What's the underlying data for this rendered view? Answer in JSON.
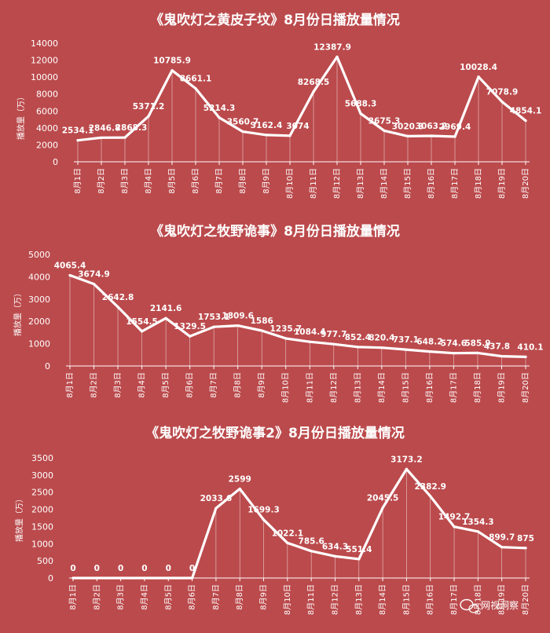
{
  "chart_data": [
    {
      "type": "line",
      "title": "《鬼吹灯之黄皮子坟》8月份日播放量情况",
      "ylabel": "播放量（万）",
      "categories": [
        "8月1日",
        "8月2日",
        "8月3日",
        "8月4日",
        "8月5日",
        "8月6日",
        "8月7日",
        "8月8日",
        "8月9日",
        "8月10日",
        "8月11日",
        "8月12日",
        "8月13日",
        "8月14日",
        "8月15日",
        "8月16日",
        "8月17日",
        "8月18日",
        "8月19日",
        "8月20日"
      ],
      "series": [
        {
          "values": [
            2534.1,
            2846.8,
            2868.3,
            5371.2,
            10785.9,
            8661.1,
            5214.3,
            3560.7,
            3162.4,
            3074,
            8268.5,
            12387.9,
            5688.3,
            3675.3,
            3020.3,
            3063.2,
            2969.4,
            10028.4,
            7078.9,
            4854.1
          ]
        }
      ],
      "data_labels": [
        "2534.1",
        "2846.8",
        "2868.3",
        "5371.2",
        "10785.9",
        "8661.1",
        "5214.3",
        "3560.7",
        "3162.4",
        "3074",
        "8268.5",
        "12387.9",
        "5688.3",
        "3675.3",
        "3020.3",
        "3063.2",
        "2969.4",
        "10028.4",
        "7078.9",
        "4854.1"
      ],
      "yticks": [
        "0",
        "2000",
        "4000",
        "6000",
        "8000",
        "10000",
        "12000",
        "14000"
      ],
      "ylim": [
        0,
        14000
      ],
      "grid": false
    },
    {
      "type": "line",
      "title": "《鬼吹灯之牧野诡事》8月份日播放量情况",
      "ylabel": "播放量（万）",
      "categories": [
        "8月1日",
        "8月2日",
        "8月3日",
        "8月4日",
        "8月5日",
        "8月6日",
        "8月7日",
        "8月8日",
        "8月9日",
        "8月10日",
        "8月11日",
        "8月12日",
        "8月13日",
        "8月14日",
        "8月15日",
        "8月16日",
        "8月17日",
        "8月18日",
        "8月19日",
        "8月20日"
      ],
      "series": [
        {
          "values": [
            4065.4,
            3674.9,
            2642.8,
            1554.5,
            2141.6,
            1329.5,
            1753.1,
            1809.6,
            1586,
            1235.7,
            1084.4,
            977.7,
            852.4,
            820.4,
            737.1,
            648.2,
            574.6,
            585.9,
            437.8,
            410.1
          ]
        }
      ],
      "data_labels": [
        "4065.4",
        "3674.9",
        "2642.8",
        "1554.5",
        "2141.6",
        "1329.5",
        "1753.1",
        "1809.6",
        "1586",
        "1235.7",
        "1084.4",
        "977.7",
        "852.4",
        "820.4",
        "737.1",
        "648.2",
        "574.6",
        "585.9",
        "437.8",
        "410.1"
      ],
      "yticks": [
        "0",
        "1000",
        "2000",
        "3000",
        "4000",
        "5000"
      ],
      "ylim": [
        0,
        5000
      ],
      "grid": false
    },
    {
      "type": "line",
      "title": "《鬼吹灯之牧野诡事2》8月份日播放量情况",
      "ylabel": "播放量（万）",
      "categories": [
        "8月1日",
        "8月2日",
        "8月3日",
        "8月4日",
        "8月5日",
        "8月6日",
        "8月7日",
        "8月8日",
        "8月9日",
        "8月10日",
        "8月11日",
        "8月12日",
        "8月13日",
        "8月14日",
        "8月15日",
        "8月16日",
        "8月17日",
        "8月18日",
        "8月19日",
        "8月20日"
      ],
      "series": [
        {
          "values": [
            0,
            0,
            0,
            0,
            0,
            0,
            2033.6,
            2599,
            1699.3,
            1022.1,
            785.6,
            634.3,
            551.4,
            2045.5,
            3173.2,
            2382.9,
            1492.7,
            1354.3,
            899.7,
            875
          ]
        }
      ],
      "data_labels": [
        "0",
        "0",
        "0",
        "0",
        "0",
        "0",
        "2033.6",
        "2599",
        "1699.3",
        "1022.1",
        "785.6",
        "634.3",
        "551.4",
        "2045.5",
        "3173.2",
        "2382.9",
        "1492.7",
        "1354.3",
        "899.7",
        "875"
      ],
      "yticks": [
        "0",
        "500",
        "1000",
        "1500",
        "2000",
        "2500",
        "3000",
        "3500"
      ],
      "ylim": [
        0,
        3500
      ],
      "grid": false
    }
  ],
  "colors": {
    "background": "#bb4a4c",
    "line": "#ffffff",
    "text": "#ffffff"
  },
  "watermark": {
    "icon": "chat-bubble-icon",
    "text": "网视洞察"
  }
}
